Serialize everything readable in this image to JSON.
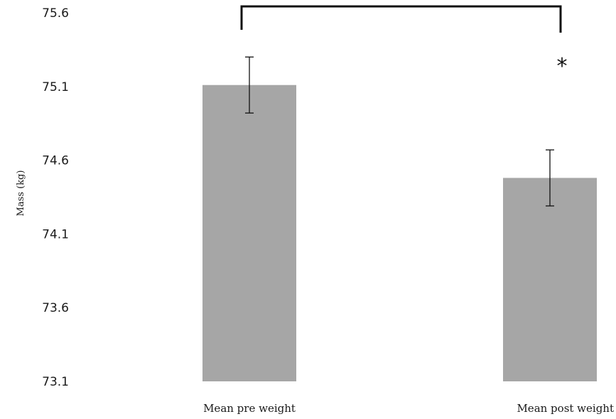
{
  "chart_data": {
    "type": "bar",
    "categories": [
      "Mean pre weight",
      "Mean post weight"
    ],
    "values": [
      75.11,
      74.48
    ],
    "error": [
      0.19,
      0.19
    ],
    "title": "",
    "xlabel": "",
    "ylabel": "Mass (kg)",
    "ylim": [
      73.1,
      75.6
    ],
    "yticks": [
      73.1,
      73.6,
      74.1,
      74.6,
      75.1,
      75.6
    ],
    "ytick_labels": [
      "73.1",
      "73.6",
      "74.1",
      "74.6",
      "75.1",
      "75.6"
    ],
    "grid": false,
    "bar_color": "#a6a6a6",
    "significance": {
      "between": [
        0,
        1
      ],
      "label": "*"
    }
  }
}
